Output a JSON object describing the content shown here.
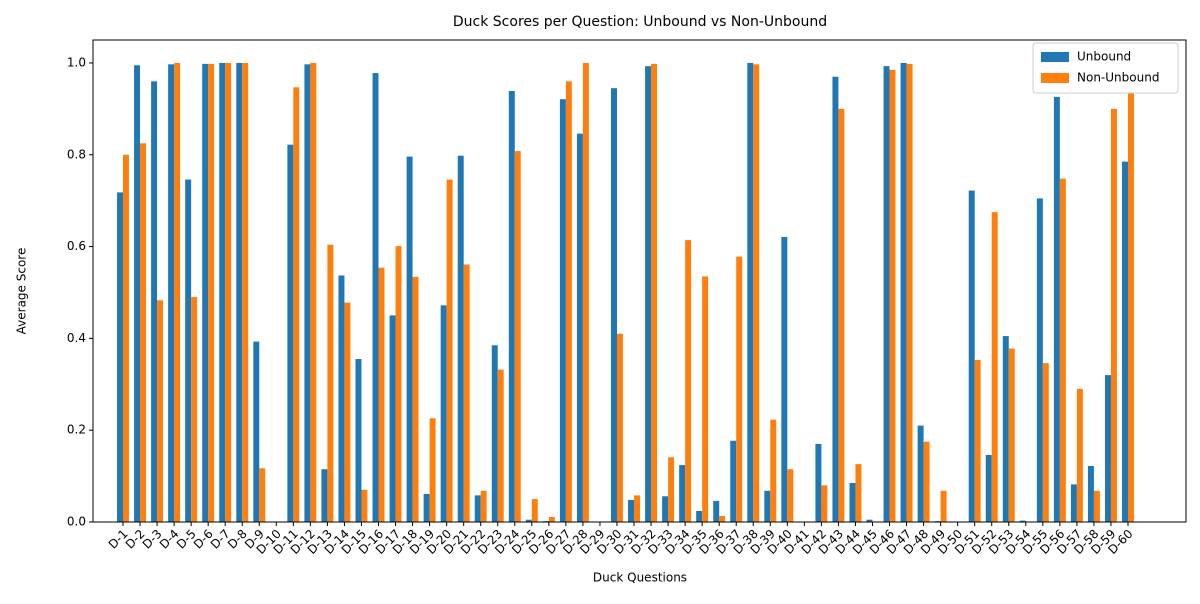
{
  "chart_data": {
    "type": "bar",
    "title": "Duck Scores per Question: Unbound vs Non-Unbound",
    "xlabel": "Duck Questions",
    "ylabel": "Average Score",
    "categories": [
      "D-1",
      "D-2",
      "D-3",
      "D-4",
      "D-5",
      "D-6",
      "D-7",
      "D-8",
      "D-9",
      "D-10",
      "D-11",
      "D-12",
      "D-13",
      "D-14",
      "D-15",
      "D-16",
      "D-17",
      "D-18",
      "D-19",
      "D-20",
      "D-21",
      "D-22",
      "D-23",
      "D-24",
      "D-25",
      "D-26",
      "D-27",
      "D-28",
      "D-29",
      "D-30",
      "D-31",
      "D-32",
      "D-33",
      "D-34",
      "D-35",
      "D-36",
      "D-37",
      "D-38",
      "D-39",
      "D-40",
      "D-41",
      "D-42",
      "D-43",
      "D-44",
      "D-45",
      "D-46",
      "D-47",
      "D-48",
      "D-49",
      "D-50",
      "D-51",
      "D-52",
      "D-53",
      "D-54",
      "D-55",
      "D-56",
      "D-57",
      "D-58",
      "D-59",
      "D-60"
    ],
    "series": [
      {
        "name": "Unbound",
        "color": "#1f77b4",
        "values": [
          0.718,
          0.995,
          0.96,
          0.997,
          0.746,
          0.998,
          1.0,
          1.0,
          0.393,
          0,
          0.822,
          0.997,
          0.115,
          0.537,
          0.355,
          0.978,
          0.45,
          0.796,
          0.061,
          0.472,
          0.798,
          0.058,
          0.385,
          0.939,
          0.005,
          0.002,
          0.921,
          0.846,
          0,
          0.945,
          0.048,
          0.993,
          0.056,
          0.124,
          0.024,
          0.046,
          0.177,
          1.0,
          0.068,
          0.621,
          0,
          0.17,
          0.97,
          0.085,
          0.005,
          0.993,
          1.0,
          0.21,
          0.002,
          0,
          0.722,
          0.146,
          0.405,
          0.003,
          0.705,
          0.926,
          0.082,
          0.122,
          0.32,
          0.785
        ]
      },
      {
        "name": "Non-Unbound",
        "color": "#ff7f0e",
        "values": [
          0.8,
          0.825,
          0.483,
          1.0,
          0.49,
          0.998,
          1.0,
          1.0,
          0.117,
          0,
          0.947,
          1.0,
          0.604,
          0.478,
          0.07,
          0.554,
          0.601,
          0.534,
          0.226,
          0.746,
          0.561,
          0.068,
          0.332,
          0.808,
          0.05,
          0.011,
          0.96,
          1.0,
          0,
          0.41,
          0.058,
          0.998,
          0.141,
          0.614,
          0.535,
          0.013,
          0.578,
          0.997,
          0.223,
          0.115,
          0,
          0.08,
          0.9,
          0.126,
          0,
          0.985,
          0.998,
          0.175,
          0.068,
          0,
          0.353,
          0.675,
          0.378,
          0,
          0.346,
          0.748,
          0.29,
          0.068,
          0.9,
          0.975
        ]
      }
    ],
    "ylim": [
      0,
      1.05
    ],
    "yticks": [
      {
        "value": 0,
        "label": "0.0"
      },
      {
        "value": 0.2,
        "label": "0.2"
      },
      {
        "value": 0.4,
        "label": "0.4"
      },
      {
        "value": 0.6,
        "label": "0.6"
      },
      {
        "value": 0.8,
        "label": "0.8"
      },
      {
        "value": 1,
        "label": "1.0"
      }
    ],
    "legend": "upper right"
  }
}
